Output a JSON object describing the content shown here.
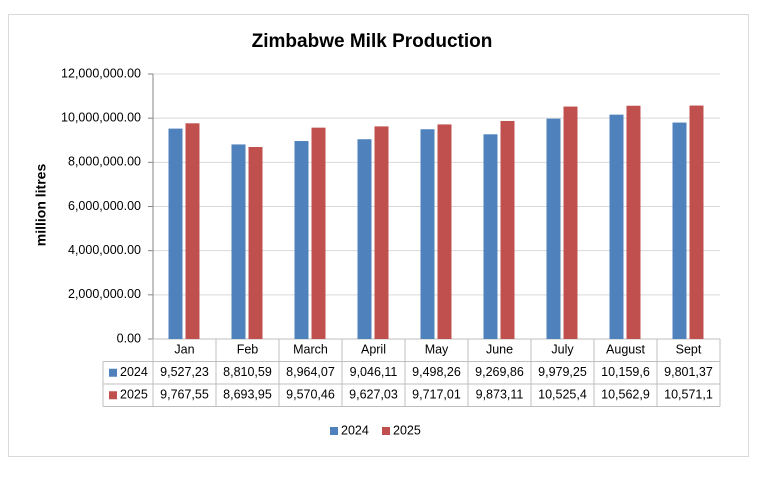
{
  "chart_data": {
    "type": "bar",
    "title": "Zimbabwe Milk Production",
    "y_label": "million litres",
    "categories": [
      "Jan",
      "Feb",
      "March",
      "April",
      "May",
      "June",
      "July",
      "August",
      "Sept"
    ],
    "series": [
      {
        "name": "2024",
        "color": "#4f81bd",
        "values": [
          9527230,
          8810590,
          8964070,
          9046110,
          9498260,
          9269860,
          9979250,
          10159600,
          9801370
        ],
        "value_labels": [
          "9,527,23",
          "8,810,59",
          "8,964,07",
          "9,046,11",
          "9,498,26",
          "9,269,86",
          "9,979,25",
          "10,159,6",
          "9,801,37"
        ]
      },
      {
        "name": "2025",
        "color": "#c0504d",
        "values": [
          9767550,
          8693950,
          9570460,
          9627030,
          9717010,
          9873110,
          10525400,
          10562900,
          10571100
        ],
        "value_labels": [
          "9,767,55",
          "8,693,95",
          "9,570,46",
          "9,627,03",
          "9,717,01",
          "9,873,11",
          "10,525,4",
          "10,562,9",
          "10,571,1"
        ]
      }
    ],
    "ylim": [
      0,
      12000000
    ],
    "yticks": [
      {
        "value": 0,
        "label": "0.00"
      },
      {
        "value": 2000000,
        "label": "2,000,000.00"
      },
      {
        "value": 4000000,
        "label": "4,000,000.00"
      },
      {
        "value": 6000000,
        "label": "6,000,000.00"
      },
      {
        "value": 8000000,
        "label": "8,000,000.00"
      },
      {
        "value": 10000000,
        "label": "10,000,000.00"
      },
      {
        "value": 12000000,
        "label": "12,000,000.00"
      }
    ],
    "grid": true
  }
}
